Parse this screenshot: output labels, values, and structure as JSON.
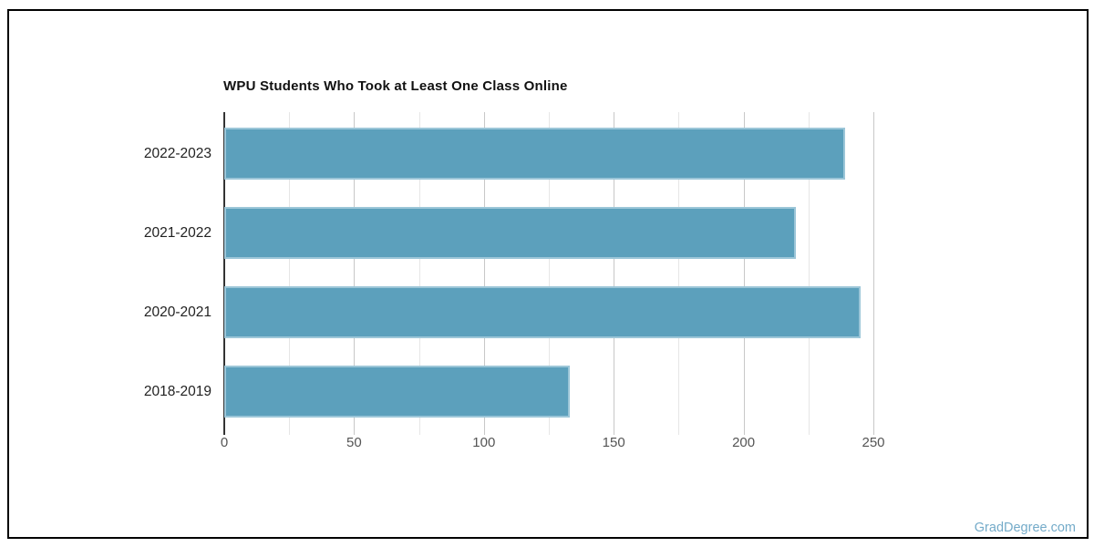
{
  "page": {
    "watermark": "GradDegree.com"
  },
  "chart_data": {
    "type": "bar",
    "orientation": "horizontal",
    "title": "WPU Students Who Took at Least One Class Online",
    "categories": [
      "2022-2023",
      "2021-2022",
      "2020-2021",
      "2018-2019"
    ],
    "values": [
      239,
      220,
      245,
      133
    ],
    "xlabel": "",
    "ylabel": "",
    "xlim": [
      0,
      250
    ],
    "xticks": [
      0,
      50,
      100,
      150,
      200,
      250
    ],
    "minor_grid_step": 25,
    "grid": true,
    "legend": false,
    "colors": {
      "bar_fill": "#5ca0bc",
      "bar_border": "#9cc6d8",
      "axis": "#333333",
      "major_grid": "#c8c8c8",
      "minor_grid": "#e6e6e6",
      "tick_label": "#555555",
      "category_label": "#222222",
      "title": "#111111",
      "watermark": "#74abc9"
    }
  }
}
